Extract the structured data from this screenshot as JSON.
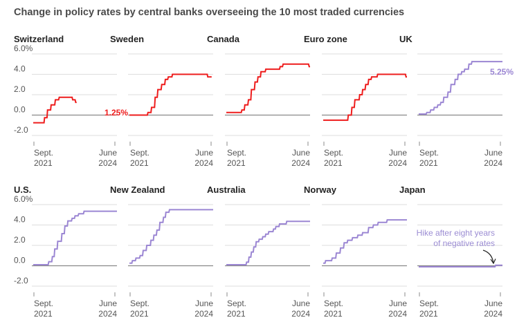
{
  "title": "Change in policy rates by central banks overseeing the 10 most traded currencies",
  "chart_data": {
    "type": "line",
    "shared": {
      "ylim": [
        -1.0,
        6.0
      ],
      "yticks": [
        "6.0%",
        "4.0",
        "2.0",
        "0.0",
        "-2.0"
      ],
      "xtick_labels": [
        [
          "Sept.",
          "2021"
        ],
        [
          "June",
          "2024"
        ]
      ],
      "grid": true,
      "colors": {
        "cut_or_holding": "#ee1c1c",
        "still_rising": "#9b86d3",
        "zero_line": "#888888",
        "grid": "#dddddd"
      }
    },
    "panels": [
      {
        "name": "Switzerland",
        "color": "#ee1c1c",
        "end_label": "1.25%",
        "points": [
          [
            0,
            -0.75
          ],
          [
            0.14,
            -0.75
          ],
          [
            0.36,
            -0.75
          ],
          [
            0.38,
            -0.25
          ],
          [
            0.46,
            -0.25
          ],
          [
            0.48,
            0.5
          ],
          [
            0.58,
            0.5
          ],
          [
            0.6,
            1.0
          ],
          [
            0.72,
            1.0
          ],
          [
            0.74,
            1.5
          ],
          [
            0.85,
            1.5
          ],
          [
            0.87,
            1.75
          ],
          [
            1.3,
            1.75
          ],
          [
            1.32,
            1.5
          ],
          [
            1.4,
            1.5
          ],
          [
            1.42,
            1.25
          ],
          [
            1.45,
            1.25
          ]
        ]
      },
      {
        "name": "Sweden",
        "color": "#ee1c1c",
        "points": [
          [
            0,
            0
          ],
          [
            0.6,
            0
          ],
          [
            0.62,
            0.25
          ],
          [
            0.72,
            0.25
          ],
          [
            0.74,
            0.75
          ],
          [
            0.84,
            0.75
          ],
          [
            0.86,
            1.75
          ],
          [
            0.93,
            1.75
          ],
          [
            0.95,
            2.5
          ],
          [
            1.06,
            2.5
          ],
          [
            1.08,
            3.0
          ],
          [
            1.18,
            3.0
          ],
          [
            1.2,
            3.5
          ],
          [
            1.28,
            3.5
          ],
          [
            1.3,
            3.75
          ],
          [
            1.42,
            3.75
          ],
          [
            1.44,
            4.0
          ],
          [
            2.6,
            4.0
          ],
          [
            2.62,
            3.75
          ],
          [
            2.75,
            3.75
          ]
        ]
      },
      {
        "name": "Canada",
        "color": "#ee1c1c",
        "points": [
          [
            0,
            0.25
          ],
          [
            0.5,
            0.25
          ],
          [
            0.52,
            0.5
          ],
          [
            0.6,
            0.5
          ],
          [
            0.62,
            1.0
          ],
          [
            0.72,
            1.0
          ],
          [
            0.74,
            1.5
          ],
          [
            0.82,
            1.5
          ],
          [
            0.84,
            2.5
          ],
          [
            0.94,
            2.5
          ],
          [
            0.96,
            3.25
          ],
          [
            1.04,
            3.25
          ],
          [
            1.06,
            3.75
          ],
          [
            1.14,
            3.75
          ],
          [
            1.16,
            4.25
          ],
          [
            1.3,
            4.25
          ],
          [
            1.32,
            4.5
          ],
          [
            1.78,
            4.5
          ],
          [
            1.8,
            4.75
          ],
          [
            1.88,
            4.75
          ],
          [
            1.9,
            5.0
          ],
          [
            2.75,
            5.0
          ],
          [
            2.77,
            4.75
          ],
          [
            2.8,
            4.75
          ]
        ]
      },
      {
        "name": "Euro zone",
        "color": "#ee1c1c",
        "points": [
          [
            0,
            -0.5
          ],
          [
            0.82,
            -0.5
          ],
          [
            0.84,
            0.0
          ],
          [
            0.94,
            0.0
          ],
          [
            0.96,
            0.75
          ],
          [
            1.04,
            0.75
          ],
          [
            1.06,
            1.5
          ],
          [
            1.2,
            1.5
          ],
          [
            1.22,
            2.0
          ],
          [
            1.3,
            2.0
          ],
          [
            1.32,
            2.5
          ],
          [
            1.4,
            2.5
          ],
          [
            1.42,
            3.0
          ],
          [
            1.5,
            3.0
          ],
          [
            1.52,
            3.5
          ],
          [
            1.6,
            3.5
          ],
          [
            1.62,
            3.75
          ],
          [
            1.8,
            3.75
          ],
          [
            1.82,
            4.0
          ],
          [
            2.75,
            4.0
          ],
          [
            2.77,
            3.75
          ],
          [
            2.8,
            3.75
          ]
        ]
      },
      {
        "name": "UK",
        "color": "#9b86d3",
        "end_label": "5.25%",
        "points": [
          [
            0,
            0.1
          ],
          [
            0.25,
            0.1
          ],
          [
            0.27,
            0.25
          ],
          [
            0.38,
            0.25
          ],
          [
            0.4,
            0.5
          ],
          [
            0.5,
            0.5
          ],
          [
            0.52,
            0.75
          ],
          [
            0.62,
            0.75
          ],
          [
            0.64,
            1.0
          ],
          [
            0.72,
            1.0
          ],
          [
            0.74,
            1.25
          ],
          [
            0.82,
            1.25
          ],
          [
            0.84,
            1.75
          ],
          [
            0.96,
            1.75
          ],
          [
            0.98,
            2.25
          ],
          [
            1.06,
            2.25
          ],
          [
            1.08,
            3.0
          ],
          [
            1.2,
            3.0
          ],
          [
            1.22,
            3.5
          ],
          [
            1.3,
            3.5
          ],
          [
            1.32,
            4.0
          ],
          [
            1.42,
            4.0
          ],
          [
            1.44,
            4.25
          ],
          [
            1.52,
            4.25
          ],
          [
            1.54,
            4.5
          ],
          [
            1.66,
            4.5
          ],
          [
            1.68,
            5.0
          ],
          [
            1.76,
            5.0
          ],
          [
            1.78,
            5.25
          ],
          [
            2.8,
            5.25
          ]
        ]
      },
      {
        "name": "U.S.",
        "color": "#9b86d3",
        "points": [
          [
            0,
            0.1
          ],
          [
            0.5,
            0.1
          ],
          [
            0.52,
            0.4
          ],
          [
            0.62,
            0.4
          ],
          [
            0.64,
            0.9
          ],
          [
            0.7,
            0.9
          ],
          [
            0.72,
            1.65
          ],
          [
            0.8,
            1.65
          ],
          [
            0.82,
            2.4
          ],
          [
            0.94,
            2.4
          ],
          [
            0.96,
            3.15
          ],
          [
            1.04,
            3.15
          ],
          [
            1.06,
            3.9
          ],
          [
            1.14,
            3.9
          ],
          [
            1.16,
            4.4
          ],
          [
            1.28,
            4.4
          ],
          [
            1.3,
            4.65
          ],
          [
            1.38,
            4.65
          ],
          [
            1.4,
            4.9
          ],
          [
            1.5,
            4.9
          ],
          [
            1.52,
            5.1
          ],
          [
            1.68,
            5.1
          ],
          [
            1.7,
            5.35
          ],
          [
            2.8,
            5.35
          ]
        ]
      },
      {
        "name": "New Zealand",
        "color": "#9b86d3",
        "points": [
          [
            0,
            0.25
          ],
          [
            0.08,
            0.25
          ],
          [
            0.1,
            0.5
          ],
          [
            0.2,
            0.5
          ],
          [
            0.22,
            0.75
          ],
          [
            0.34,
            0.75
          ],
          [
            0.36,
            1.0
          ],
          [
            0.44,
            1.0
          ],
          [
            0.46,
            1.5
          ],
          [
            0.56,
            1.5
          ],
          [
            0.58,
            2.0
          ],
          [
            0.7,
            2.0
          ],
          [
            0.72,
            2.5
          ],
          [
            0.8,
            2.5
          ],
          [
            0.82,
            3.0
          ],
          [
            0.9,
            3.0
          ],
          [
            0.92,
            3.5
          ],
          [
            1.0,
            3.5
          ],
          [
            1.02,
            4.25
          ],
          [
            1.12,
            4.25
          ],
          [
            1.14,
            4.75
          ],
          [
            1.2,
            4.75
          ],
          [
            1.22,
            5.25
          ],
          [
            1.32,
            5.25
          ],
          [
            1.34,
            5.5
          ],
          [
            2.8,
            5.5
          ]
        ]
      },
      {
        "name": "Australia",
        "color": "#9b86d3",
        "points": [
          [
            0,
            0.1
          ],
          [
            0.66,
            0.1
          ],
          [
            0.68,
            0.35
          ],
          [
            0.74,
            0.35
          ],
          [
            0.76,
            0.85
          ],
          [
            0.82,
            0.85
          ],
          [
            0.84,
            1.35
          ],
          [
            0.9,
            1.35
          ],
          [
            0.92,
            1.85
          ],
          [
            0.98,
            1.85
          ],
          [
            1.0,
            2.35
          ],
          [
            1.08,
            2.35
          ],
          [
            1.1,
            2.6
          ],
          [
            1.2,
            2.6
          ],
          [
            1.22,
            2.85
          ],
          [
            1.3,
            2.85
          ],
          [
            1.32,
            3.1
          ],
          [
            1.4,
            3.1
          ],
          [
            1.42,
            3.35
          ],
          [
            1.56,
            3.35
          ],
          [
            1.58,
            3.6
          ],
          [
            1.64,
            3.6
          ],
          [
            1.66,
            3.85
          ],
          [
            1.76,
            3.85
          ],
          [
            1.78,
            4.1
          ],
          [
            2.0,
            4.1
          ],
          [
            2.02,
            4.35
          ],
          [
            2.8,
            4.35
          ]
        ]
      },
      {
        "name": "Norway",
        "color": "#9b86d3",
        "points": [
          [
            0,
            0.25
          ],
          [
            0.06,
            0.25
          ],
          [
            0.08,
            0.5
          ],
          [
            0.28,
            0.5
          ],
          [
            0.3,
            0.75
          ],
          [
            0.42,
            0.75
          ],
          [
            0.44,
            1.25
          ],
          [
            0.56,
            1.25
          ],
          [
            0.58,
            1.75
          ],
          [
            0.68,
            1.75
          ],
          [
            0.7,
            2.25
          ],
          [
            0.8,
            2.25
          ],
          [
            0.82,
            2.5
          ],
          [
            0.96,
            2.5
          ],
          [
            0.98,
            2.75
          ],
          [
            1.14,
            2.75
          ],
          [
            1.16,
            3.0
          ],
          [
            1.3,
            3.0
          ],
          [
            1.32,
            3.25
          ],
          [
            1.5,
            3.25
          ],
          [
            1.52,
            3.75
          ],
          [
            1.66,
            3.75
          ],
          [
            1.68,
            4.0
          ],
          [
            1.82,
            4.0
          ],
          [
            1.84,
            4.25
          ],
          [
            2.12,
            4.25
          ],
          [
            2.14,
            4.5
          ],
          [
            2.8,
            4.5
          ]
        ]
      },
      {
        "name": "Japan",
        "color": "#9b86d3",
        "annotation": "Hike after eight years of negative rates",
        "annotation_lines": [
          "Hike after eight years",
          "of negative rates"
        ],
        "points": [
          [
            0,
            -0.1
          ],
          [
            2.55,
            -0.1
          ],
          [
            2.57,
            0.05
          ],
          [
            2.8,
            0.05
          ]
        ]
      }
    ]
  }
}
